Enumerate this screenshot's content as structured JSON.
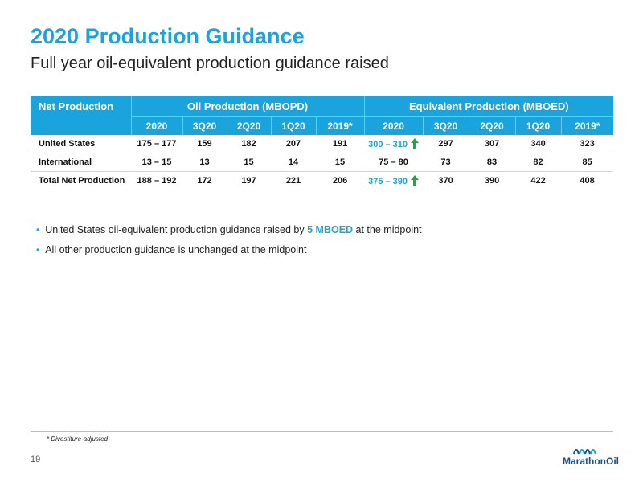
{
  "slide": {
    "title": "2020 Production Guidance",
    "subtitle": "Full year oil-equivalent production guidance raised",
    "page_number": "19",
    "footnote": "* Divestiture-adjusted"
  },
  "table": {
    "corner_label": "Net Production",
    "group_oil": "Oil Production (MBOPD)",
    "group_eq": "Equivalent Production (MBOED)",
    "oil_cols": [
      "2020",
      "3Q20",
      "2Q20",
      "1Q20",
      "2019*"
    ],
    "eq_cols": [
      "2020",
      "3Q20",
      "2Q20",
      "1Q20",
      "2019*"
    ],
    "rows": [
      {
        "label": "United States",
        "oil": [
          "175 – 177",
          "159",
          "182",
          "207",
          "191"
        ],
        "eq": [
          "300 – 310",
          "297",
          "307",
          "340",
          "323"
        ]
      },
      {
        "label": "International",
        "oil": [
          "13 – 15",
          "13",
          "15",
          "14",
          "15"
        ],
        "eq": [
          "75 – 80",
          "73",
          "83",
          "82",
          "85"
        ]
      },
      {
        "label": "Total Net Production",
        "oil": [
          "188 – 192",
          "172",
          "197",
          "221",
          "206"
        ],
        "eq": [
          "375 – 390",
          "370",
          "390",
          "422",
          "408"
        ]
      }
    ]
  },
  "bullets": {
    "b1_prefix": "United States oil-equivalent production guidance raised by ",
    "b1_highlight": "5 MBOED",
    "b1_suffix": " at the midpoint",
    "b2": "All other production guidance is unchanged at the midpoint"
  },
  "logo": {
    "text": "MarathonOil"
  },
  "colors": {
    "accent": "#1aa3dc",
    "arrow": "#2aa04a",
    "logo": "#1d4f8c"
  },
  "icons": {
    "raised": "up-arrow-icon",
    "bullet": "bullet-dot-icon"
  }
}
